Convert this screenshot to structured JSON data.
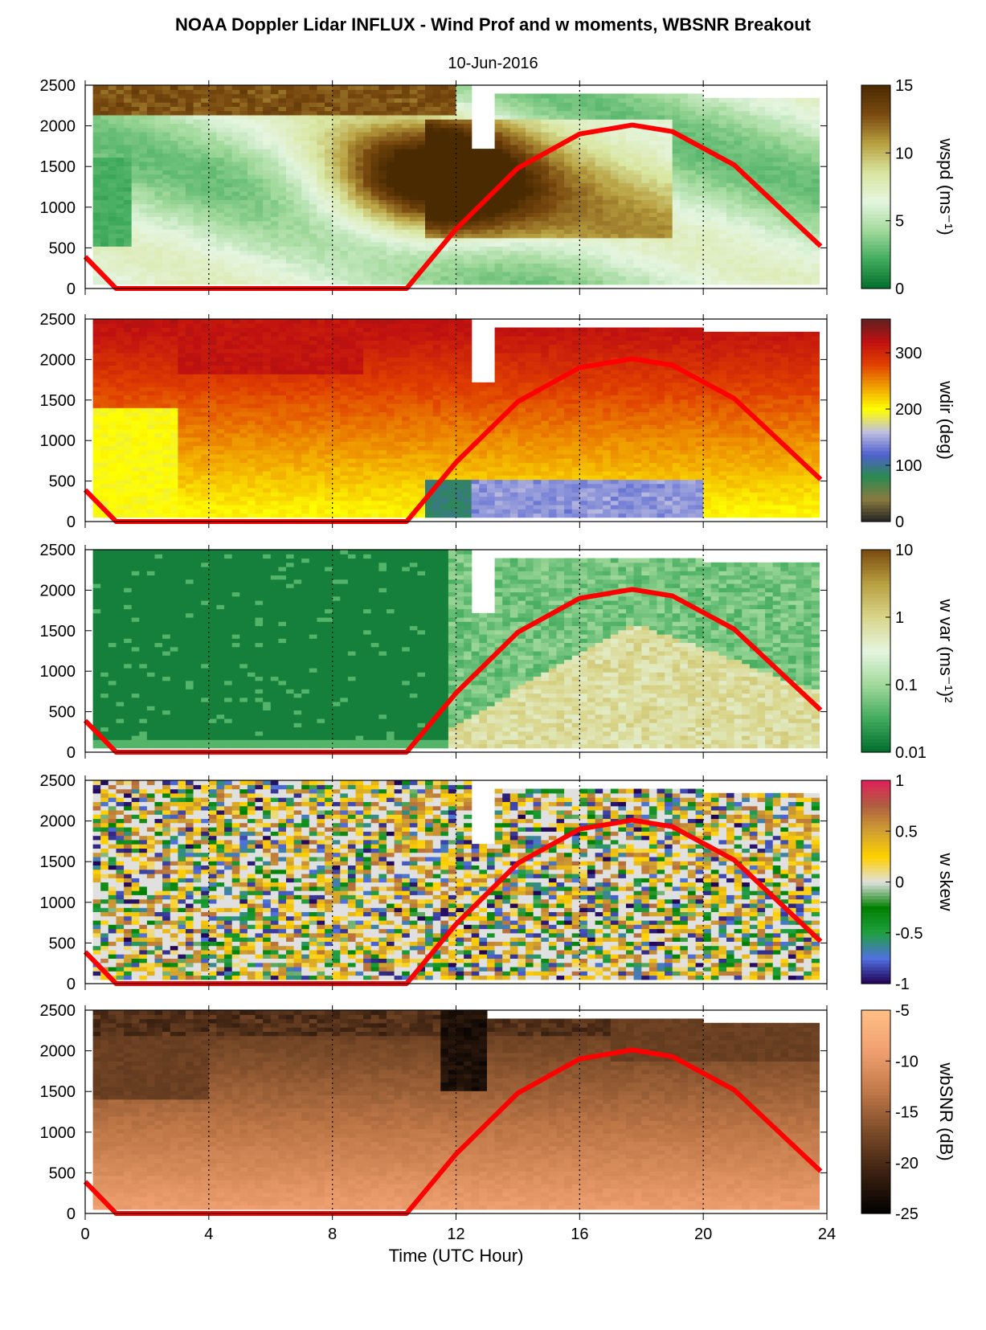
{
  "title": "NOAA Doppler Lidar INFLUX - Wind Prof and w moments, WBSNR Breakout",
  "subtitle": "10-Jun-2016",
  "xlabel": "Time (UTC Hour)",
  "colors": {
    "sun_curve": "#ff0000",
    "dotted_grid": "#000000"
  },
  "chart_data": [
    {
      "type": "heatmap",
      "panel": "wspd",
      "x_range": [
        0,
        24
      ],
      "x_ticks": [
        "0",
        "4",
        "8",
        "12",
        "16",
        "20",
        "24"
      ],
      "y_range": [
        0,
        2500
      ],
      "y_ticks": [
        "0",
        "500",
        "1000",
        "1500",
        "2000",
        "2500"
      ],
      "colorbar_label": "wspd (ms⁻¹)",
      "colorbar_ticks": [
        "0",
        "5",
        "10",
        "15"
      ],
      "colorbar_range": [
        0,
        15
      ],
      "colormap": [
        "#006d2c",
        "#41ab5d",
        "#a1d99b",
        "#e5f5e0",
        "#d9e6a0",
        "#b8a040",
        "#7a4a10",
        "#4a2a00"
      ],
      "grid": "dotted vertical at 4,8,12,16,20",
      "note_values": "wind speed field low in morning (5-8 ms⁻¹), strong 10-15 ms⁻¹ jet 9-17 h at 700-2000 m"
    },
    {
      "type": "heatmap",
      "panel": "wdir",
      "x_range": [
        0,
        24
      ],
      "x_ticks": [
        "0",
        "4",
        "8",
        "12",
        "16",
        "20",
        "24"
      ],
      "y_range": [
        0,
        2500
      ],
      "y_ticks": [
        "0",
        "500",
        "1000",
        "1500",
        "2000",
        "2500"
      ],
      "colorbar_label": "wdir (deg)",
      "colorbar_ticks": [
        "0",
        "100",
        "200",
        "300"
      ],
      "colorbar_range": [
        0,
        360
      ],
      "colormap": [
        "#222222",
        "#8a7a40",
        "#2a8a50",
        "#5060d0",
        "#c0c0e0",
        "#ffff00",
        "#f0a000",
        "#e04000",
        "#c01010",
        "#602020"
      ],
      "grid": "dotted vertical at 4,8,12,16,20"
    },
    {
      "type": "heatmap",
      "panel": "w var",
      "x_range": [
        0,
        24
      ],
      "x_ticks": [
        "0",
        "4",
        "8",
        "12",
        "16",
        "20",
        "24"
      ],
      "y_range": [
        0,
        2500
      ],
      "y_ticks": [
        "0",
        "500",
        "1000",
        "1500",
        "2000",
        "2500"
      ],
      "colorbar_label": "w var (ms⁻¹)²",
      "colorbar_ticks": [
        "0.01",
        "0.1",
        "1",
        "10"
      ],
      "colorbar_scale": "log",
      "colorbar_range": [
        0.01,
        10
      ],
      "colormap": [
        "#006d2c",
        "#41ab5d",
        "#a1d99b",
        "#e5f5e0",
        "#d9d58a",
        "#b8a040",
        "#7a4a10"
      ],
      "grid": "dotted vertical at 4,8,12,16,20"
    },
    {
      "type": "heatmap",
      "panel": "w skew",
      "x_range": [
        0,
        24
      ],
      "x_ticks": [
        "0",
        "4",
        "8",
        "12",
        "16",
        "20",
        "24"
      ],
      "y_range": [
        0,
        2500
      ],
      "y_ticks": [
        "0",
        "500",
        "1000",
        "1500",
        "2000",
        "2500"
      ],
      "colorbar_label": "w skew",
      "colorbar_ticks": [
        "-1",
        "-0.5",
        "0",
        "0.5",
        "1"
      ],
      "colorbar_range": [
        -1,
        1
      ],
      "colormap": [
        "#200050",
        "#5070e0",
        "#20a040",
        "#008000",
        "#e0e0e0",
        "#ffd000",
        "#d0a030",
        "#b06040",
        "#e0205a"
      ],
      "grid": "dotted vertical at 4,8,12,16,20"
    },
    {
      "type": "heatmap",
      "panel": "wbSNR",
      "x_range": [
        0,
        24
      ],
      "x_ticks": [
        "0",
        "4",
        "8",
        "12",
        "16",
        "20",
        "24"
      ],
      "y_range": [
        0,
        2500
      ],
      "y_ticks": [
        "0",
        "500",
        "1000",
        "1500",
        "2000",
        "2500"
      ],
      "colorbar_label": "wbSNR (dB)",
      "colorbar_ticks": [
        "-25",
        "-20",
        "-15",
        "-10",
        "-5"
      ],
      "colorbar_range": [
        -25,
        -5
      ],
      "colormap": [
        "#000000",
        "#3a2010",
        "#7a4a28",
        "#c07848",
        "#f0a070",
        "#ffbf85"
      ],
      "grid": "dotted vertical at 4,8,12,16,20"
    }
  ],
  "sun_curve": {
    "description_hidden": false,
    "x": [
      0,
      1,
      10.4,
      12,
      14,
      16,
      17.7,
      19,
      21,
      23.8
    ],
    "y": [
      390,
      0,
      0,
      730,
      1480,
      1900,
      2010,
      1930,
      1520,
      520
    ]
  }
}
